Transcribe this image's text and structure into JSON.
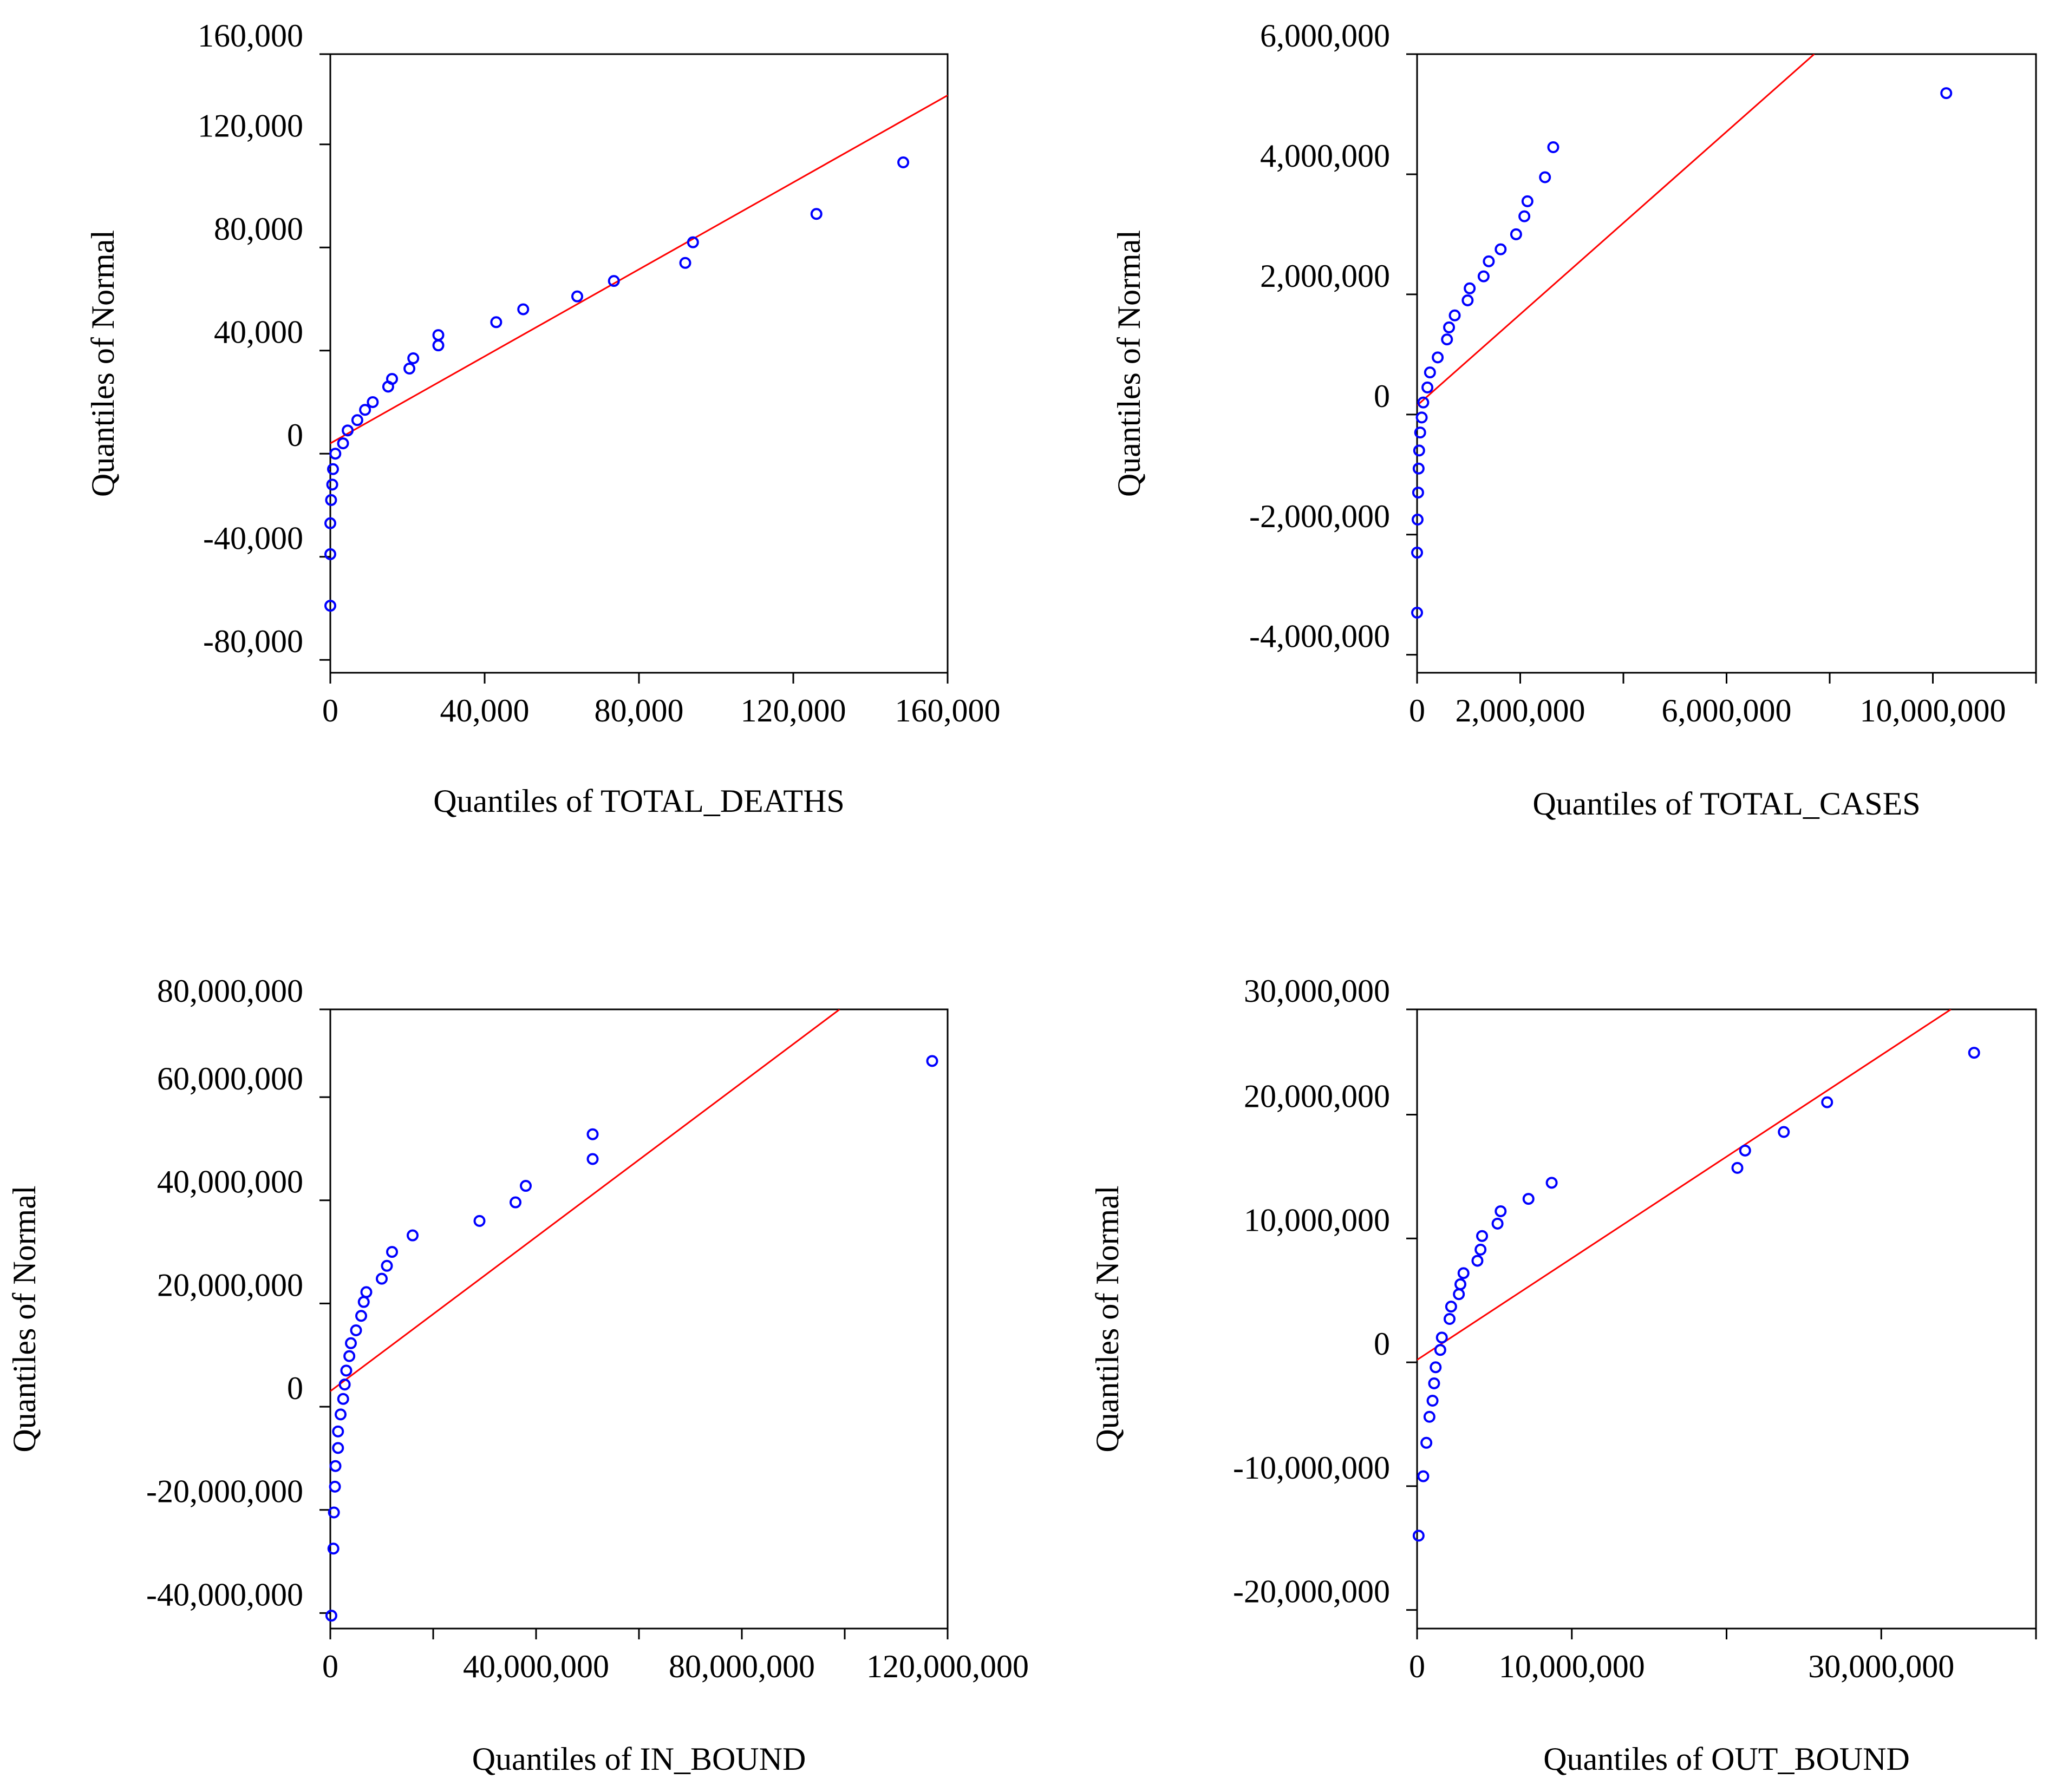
{
  "chart_data": [
    {
      "type": "scatter",
      "title": "",
      "xlabel": "Quantiles of TOTAL_DEATHS",
      "ylabel": "Quantiles of Normal",
      "xlim": [
        0,
        160000
      ],
      "ylim": [
        -85000,
        155000
      ],
      "x_ticks": [
        0,
        40000,
        80000,
        120000,
        160000
      ],
      "x_tick_labels": [
        "0",
        "40,000",
        "80,000",
        "120,000",
        "160,000"
      ],
      "y_ticks": [
        -80000,
        -40000,
        0,
        40000,
        80000,
        120000,
        160000
      ],
      "y_tick_labels": [
        "-80,000",
        "-40,000",
        "0",
        "40,000",
        "80,000",
        "120,000",
        "160,000"
      ],
      "colors": {
        "points": "#0000ff",
        "line": "#ff0000"
      },
      "reference_line": [
        [
          0,
          4000
        ],
        [
          160000,
          139000
        ]
      ],
      "points": [
        [
          0,
          -59000
        ],
        [
          0,
          -39000
        ],
        [
          0,
          -27000
        ],
        [
          200,
          -18000
        ],
        [
          500,
          -12000
        ],
        [
          700,
          -6000
        ],
        [
          1300,
          0
        ],
        [
          3300,
          4000
        ],
        [
          4500,
          9000
        ],
        [
          7000,
          13000
        ],
        [
          9000,
          17000
        ],
        [
          11000,
          20000
        ],
        [
          15000,
          26000
        ],
        [
          16000,
          29000
        ],
        [
          20500,
          33000
        ],
        [
          21500,
          37000
        ],
        [
          28000,
          42000
        ],
        [
          28000,
          46000
        ],
        [
          43000,
          51000
        ],
        [
          50000,
          56000
        ],
        [
          64000,
          61000
        ],
        [
          73500,
          67000
        ],
        [
          92000,
          74000
        ],
        [
          94000,
          82000
        ],
        [
          126000,
          93000
        ],
        [
          148500,
          113000
        ]
      ]
    },
    {
      "type": "scatter",
      "title": "",
      "xlabel": "Quantiles of TOTAL_CASES",
      "ylabel": "Quantiles of Normal",
      "xlim": [
        0,
        12000000
      ],
      "ylim": [
        -4300000,
        6000000
      ],
      "x_ticks": [
        0,
        2000000,
        4000000,
        6000000,
        8000000,
        10000000,
        12000000
      ],
      "x_tick_labels": [
        "0",
        "2,000,000",
        "",
        "6,000,000",
        "",
        "10,000,000",
        ""
      ],
      "y_ticks": [
        -4000000,
        -2000000,
        0,
        2000000,
        4000000,
        6000000
      ],
      "y_tick_labels": [
        "-4,000,000",
        "-2,000,000",
        "0",
        "2,000,000",
        "4,000,000",
        "6,000,000"
      ],
      "colors": {
        "points": "#0000ff",
        "line": "#ff0000"
      },
      "reference_line": [
        [
          0,
          150000
        ],
        [
          7700000,
          6000000
        ]
      ],
      "points": [
        [
          0,
          -3300000
        ],
        [
          0,
          -2300000
        ],
        [
          10000,
          -1750000
        ],
        [
          20000,
          -1300000
        ],
        [
          30000,
          -900000
        ],
        [
          40000,
          -600000
        ],
        [
          60000,
          -300000
        ],
        [
          90000,
          -50000
        ],
        [
          120000,
          200000
        ],
        [
          200000,
          450000
        ],
        [
          250000,
          700000
        ],
        [
          400000,
          950000
        ],
        [
          580000,
          1250000
        ],
        [
          620000,
          1450000
        ],
        [
          730000,
          1650000
        ],
        [
          980000,
          1900000
        ],
        [
          1020000,
          2100000
        ],
        [
          1290000,
          2300000
        ],
        [
          1390000,
          2550000
        ],
        [
          1620000,
          2750000
        ],
        [
          1920000,
          3000000
        ],
        [
          2080000,
          3300000
        ],
        [
          2140000,
          3550000
        ],
        [
          2480000,
          3950000
        ],
        [
          2640000,
          4450000
        ],
        [
          10260000,
          5350000
        ]
      ]
    },
    {
      "type": "scatter",
      "title": "",
      "xlabel": "Quantiles of IN_BOUND",
      "ylabel": "Quantiles of Normal",
      "xlim": [
        0,
        120000000
      ],
      "ylim": [
        -43000000,
        77000000
      ],
      "x_ticks": [
        0,
        20000000,
        40000000,
        60000000,
        80000000,
        100000000,
        120000000
      ],
      "x_tick_labels": [
        "0",
        "",
        "40,000,000",
        "",
        "80,000,000",
        "",
        "120,000,000"
      ],
      "y_ticks": [
        -40000000,
        -20000000,
        0,
        20000000,
        40000000,
        60000000,
        80000000
      ],
      "y_tick_labels": [
        "-40,000,000",
        "-20,000,000",
        "0",
        "20,000,000",
        "40,000,000",
        "60,000,000",
        "80,000,000"
      ],
      "colors": {
        "points": "#0000ff",
        "line": "#ff0000"
      },
      "reference_line": [
        [
          0,
          3000000
        ],
        [
          99000000,
          77000000
        ]
      ],
      "points": [
        [
          200000,
          -40500000
        ],
        [
          600000,
          -27500000
        ],
        [
          700000,
          -20500000
        ],
        [
          900000,
          -15500000
        ],
        [
          1000000,
          -11500000
        ],
        [
          1500000,
          -8000000
        ],
        [
          1500000,
          -4800000
        ],
        [
          2000000,
          -1500000
        ],
        [
          2500000,
          1500000
        ],
        [
          2800000,
          4300000
        ],
        [
          3100000,
          7000000
        ],
        [
          3700000,
          9800000
        ],
        [
          4000000,
          12300000
        ],
        [
          5000000,
          14800000
        ],
        [
          6000000,
          17600000
        ],
        [
          6500000,
          20300000
        ],
        [
          7000000,
          22200000
        ],
        [
          10000000,
          24800000
        ],
        [
          11000000,
          27300000
        ],
        [
          12000000,
          30000000
        ],
        [
          16000000,
          33200000
        ],
        [
          29000000,
          36000000
        ],
        [
          36000000,
          39600000
        ],
        [
          38000000,
          42800000
        ],
        [
          51000000,
          48000000
        ],
        [
          51000000,
          52800000
        ],
        [
          117000000,
          67000000
        ]
      ]
    },
    {
      "type": "scatter",
      "title": "",
      "xlabel": "Quantiles of OUT_BOUND",
      "ylabel": "Quantiles of Normal",
      "xlim": [
        0,
        40000000
      ],
      "ylim": [
        -21500000,
        28500000
      ],
      "x_ticks": [
        0,
        10000000,
        20000000,
        30000000,
        40000000
      ],
      "x_tick_labels": [
        "0",
        "10,000,000",
        "",
        "30,000,000",
        ""
      ],
      "y_ticks": [
        -20000000,
        -10000000,
        0,
        10000000,
        20000000,
        30000000
      ],
      "y_tick_labels": [
        "-20,000,000",
        "-10,000,000",
        "0",
        "10,000,000",
        "20,000,000",
        "30,000,000"
      ],
      "colors": {
        "points": "#0000ff",
        "line": "#ff0000"
      },
      "reference_line": [
        [
          0,
          200000
        ],
        [
          34500000,
          28500000
        ]
      ],
      "points": [
        [
          100000,
          -14000000
        ],
        [
          400000,
          -9200000
        ],
        [
          600000,
          -6500000
        ],
        [
          800000,
          -4400000
        ],
        [
          1000000,
          -3100000
        ],
        [
          1100000,
          -1700000
        ],
        [
          1200000,
          -400000
        ],
        [
          1500000,
          1000000
        ],
        [
          1600000,
          2000000
        ],
        [
          2100000,
          3500000
        ],
        [
          2200000,
          4500000
        ],
        [
          2700000,
          5500000
        ],
        [
          2800000,
          6300000
        ],
        [
          3000000,
          7200000
        ],
        [
          3900000,
          8200000
        ],
        [
          4100000,
          9100000
        ],
        [
          4200000,
          10200000
        ],
        [
          5200000,
          11200000
        ],
        [
          5400000,
          12200000
        ],
        [
          7200000,
          13200000
        ],
        [
          8700000,
          14500000
        ],
        [
          20700000,
          15700000
        ],
        [
          21200000,
          17100000
        ],
        [
          23700000,
          18600000
        ],
        [
          26500000,
          21000000
        ],
        [
          36000000,
          25000000
        ]
      ]
    }
  ]
}
